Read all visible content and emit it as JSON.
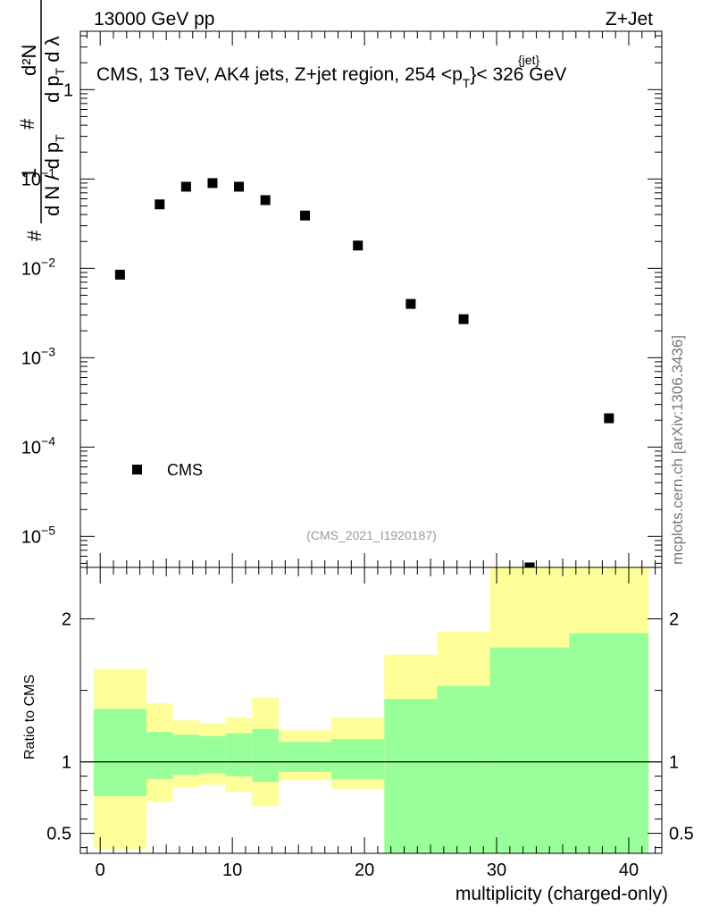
{
  "header": {
    "left": "13000 GeV pp",
    "right": "Z+Jet"
  },
  "side_label": "mcplots.cern.ch [arXiv:1306.3436]",
  "chart_data": [
    {
      "type": "scatter",
      "panel": "main",
      "title": "CMS, 13 TeV, AK4 jets, Z+jet region, 254 <p",
      "title_sup": "{jet}",
      "title_sub": "T",
      "title_end": "}< 326 GeV",
      "ylabel_parts": {
        "num": "d²N",
        "den": "d N / d p_T",
        "sym": "d p_T d λ",
        "hash": "#",
        "one": "1"
      },
      "yscale": "log",
      "ylim": [
        4.5e-06,
        4.5
      ],
      "xlim": [
        -1.5,
        42.5
      ],
      "y_ticks": [
        {
          "v": 1,
          "label": "1"
        },
        {
          "v": 0.1,
          "label": "10",
          "exp": "−1"
        },
        {
          "v": 0.01,
          "label": "10",
          "exp": "−2"
        },
        {
          "v": 0.001,
          "label": "10",
          "exp": "−3"
        },
        {
          "v": 0.0001,
          "label": "10",
          "exp": "−4"
        },
        {
          "v": 1e-05,
          "label": "10",
          "exp": "−5"
        }
      ],
      "series": [
        {
          "name": "CMS",
          "x": [
            1.5,
            4.5,
            6.5,
            8.5,
            10.5,
            12.5,
            15.5,
            19.5,
            23.5,
            27.5,
            32.5,
            38.5
          ],
          "y": [
            0.0085,
            0.052,
            0.082,
            0.09,
            0.082,
            0.058,
            0.039,
            0.018,
            0.004,
            0.0027,
            4.5e-06,
            0.00021
          ]
        }
      ],
      "legend": {
        "label": "CMS",
        "placement": "bottom-left"
      },
      "watermark": "(CMS_2021_I1920187)"
    },
    {
      "type": "area",
      "panel": "ratio",
      "ylabel": "Ratio to CMS",
      "xlabel": "multiplicity (charged-only)",
      "xlim": [
        -1.5,
        42.5
      ],
      "ylim": [
        0.36,
        2.36
      ],
      "x_ticks": [
        0,
        10,
        20,
        30,
        40
      ],
      "y_ticks": [
        {
          "v": 0.5,
          "label": "0.5"
        },
        {
          "v": 1,
          "label": "1"
        },
        {
          "v": 2,
          "label": "2"
        }
      ],
      "reference_line": 1,
      "bins": [
        {
          "lo": -0.5,
          "hi": 3.5,
          "g_lo": 0.76,
          "g_hi": 1.37,
          "y_lo": 0.39,
          "y_hi": 1.65
        },
        {
          "lo": 3.5,
          "hi": 5.5,
          "g_lo": 0.88,
          "g_hi": 1.21,
          "y_lo": 0.72,
          "y_hi": 1.41
        },
        {
          "lo": 5.5,
          "hi": 7.5,
          "g_lo": 0.91,
          "g_hi": 1.19,
          "y_lo": 0.82,
          "y_hi": 1.29
        },
        {
          "lo": 7.5,
          "hi": 9.5,
          "g_lo": 0.92,
          "g_hi": 1.18,
          "y_lo": 0.84,
          "y_hi": 1.27
        },
        {
          "lo": 9.5,
          "hi": 11.5,
          "g_lo": 0.9,
          "g_hi": 1.2,
          "y_lo": 0.79,
          "y_hi": 1.31
        },
        {
          "lo": 11.5,
          "hi": 13.5,
          "g_lo": 0.86,
          "g_hi": 1.23,
          "y_lo": 0.69,
          "y_hi": 1.45
        },
        {
          "lo": 13.5,
          "hi": 17.5,
          "g_lo": 0.93,
          "g_hi": 1.14,
          "y_lo": 0.87,
          "y_hi": 1.22
        },
        {
          "lo": 17.5,
          "hi": 21.5,
          "g_lo": 0.88,
          "g_hi": 1.16,
          "y_lo": 0.81,
          "y_hi": 1.31
        },
        {
          "lo": 21.5,
          "hi": 25.5,
          "g_lo": 0.36,
          "g_hi": 1.44,
          "y_lo": 0.36,
          "y_hi": 1.75
        },
        {
          "lo": 25.5,
          "hi": 29.5,
          "g_lo": 0.36,
          "g_hi": 1.53,
          "y_lo": 0.36,
          "y_hi": 1.91
        },
        {
          "lo": 29.5,
          "hi": 35.5,
          "g_lo": 0.36,
          "g_hi": 1.8,
          "y_lo": 0.36,
          "y_hi": 2.36
        },
        {
          "lo": 35.5,
          "hi": 41.5,
          "g_lo": 0.36,
          "g_hi": 1.9,
          "y_lo": 0.36,
          "y_hi": 2.36
        }
      ],
      "colors": {
        "green": "#99ff99",
        "yellow": "#ffff99"
      }
    }
  ]
}
